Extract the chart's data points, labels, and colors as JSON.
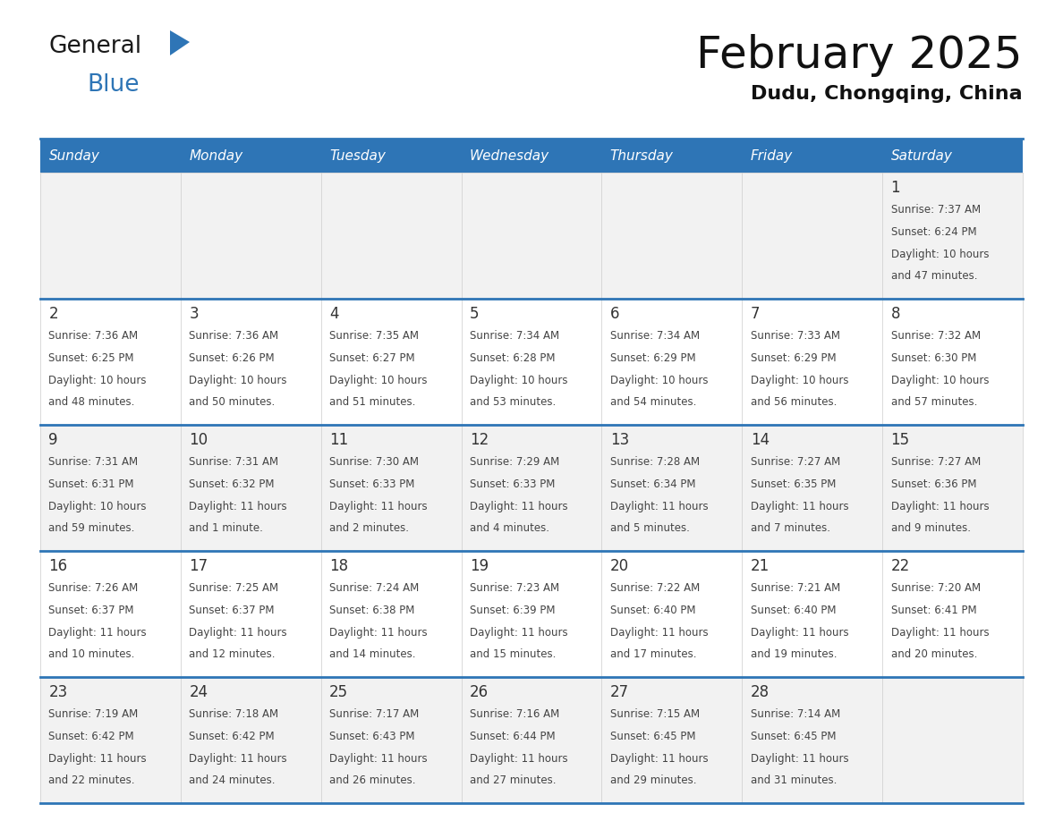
{
  "title": "February 2025",
  "subtitle": "Dudu, Chongqing, China",
  "days_of_week": [
    "Sunday",
    "Monday",
    "Tuesday",
    "Wednesday",
    "Thursday",
    "Friday",
    "Saturday"
  ],
  "header_bg": "#2E75B6",
  "header_text": "#FFFFFF",
  "divider_color": "#2E75B6",
  "day_number_color": "#333333",
  "info_text_color": "#444444",
  "title_color": "#111111",
  "subtitle_color": "#111111",
  "row0_bg": "#F2F2F2",
  "row1_bg": "#FFFFFF",
  "calendar_data": [
    {
      "day": 1,
      "col": 6,
      "row": 0,
      "sunrise": "7:37 AM",
      "sunset": "6:24 PM",
      "daylight_hours": 10,
      "daylight_minutes": 47,
      "minute_word": "minutes"
    },
    {
      "day": 2,
      "col": 0,
      "row": 1,
      "sunrise": "7:36 AM",
      "sunset": "6:25 PM",
      "daylight_hours": 10,
      "daylight_minutes": 48,
      "minute_word": "minutes"
    },
    {
      "day": 3,
      "col": 1,
      "row": 1,
      "sunrise": "7:36 AM",
      "sunset": "6:26 PM",
      "daylight_hours": 10,
      "daylight_minutes": 50,
      "minute_word": "minutes"
    },
    {
      "day": 4,
      "col": 2,
      "row": 1,
      "sunrise": "7:35 AM",
      "sunset": "6:27 PM",
      "daylight_hours": 10,
      "daylight_minutes": 51,
      "minute_word": "minutes"
    },
    {
      "day": 5,
      "col": 3,
      "row": 1,
      "sunrise": "7:34 AM",
      "sunset": "6:28 PM",
      "daylight_hours": 10,
      "daylight_minutes": 53,
      "minute_word": "minutes"
    },
    {
      "day": 6,
      "col": 4,
      "row": 1,
      "sunrise": "7:34 AM",
      "sunset": "6:29 PM",
      "daylight_hours": 10,
      "daylight_minutes": 54,
      "minute_word": "minutes"
    },
    {
      "day": 7,
      "col": 5,
      "row": 1,
      "sunrise": "7:33 AM",
      "sunset": "6:29 PM",
      "daylight_hours": 10,
      "daylight_minutes": 56,
      "minute_word": "minutes"
    },
    {
      "day": 8,
      "col": 6,
      "row": 1,
      "sunrise": "7:32 AM",
      "sunset": "6:30 PM",
      "daylight_hours": 10,
      "daylight_minutes": 57,
      "minute_word": "minutes"
    },
    {
      "day": 9,
      "col": 0,
      "row": 2,
      "sunrise": "7:31 AM",
      "sunset": "6:31 PM",
      "daylight_hours": 10,
      "daylight_minutes": 59,
      "minute_word": "minutes"
    },
    {
      "day": 10,
      "col": 1,
      "row": 2,
      "sunrise": "7:31 AM",
      "sunset": "6:32 PM",
      "daylight_hours": 11,
      "daylight_minutes": 1,
      "minute_word": "minute"
    },
    {
      "day": 11,
      "col": 2,
      "row": 2,
      "sunrise": "7:30 AM",
      "sunset": "6:33 PM",
      "daylight_hours": 11,
      "daylight_minutes": 2,
      "minute_word": "minutes"
    },
    {
      "day": 12,
      "col": 3,
      "row": 2,
      "sunrise": "7:29 AM",
      "sunset": "6:33 PM",
      "daylight_hours": 11,
      "daylight_minutes": 4,
      "minute_word": "minutes"
    },
    {
      "day": 13,
      "col": 4,
      "row": 2,
      "sunrise": "7:28 AM",
      "sunset": "6:34 PM",
      "daylight_hours": 11,
      "daylight_minutes": 5,
      "minute_word": "minutes"
    },
    {
      "day": 14,
      "col": 5,
      "row": 2,
      "sunrise": "7:27 AM",
      "sunset": "6:35 PM",
      "daylight_hours": 11,
      "daylight_minutes": 7,
      "minute_word": "minutes"
    },
    {
      "day": 15,
      "col": 6,
      "row": 2,
      "sunrise": "7:27 AM",
      "sunset": "6:36 PM",
      "daylight_hours": 11,
      "daylight_minutes": 9,
      "minute_word": "minutes"
    },
    {
      "day": 16,
      "col": 0,
      "row": 3,
      "sunrise": "7:26 AM",
      "sunset": "6:37 PM",
      "daylight_hours": 11,
      "daylight_minutes": 10,
      "minute_word": "minutes"
    },
    {
      "day": 17,
      "col": 1,
      "row": 3,
      "sunrise": "7:25 AM",
      "sunset": "6:37 PM",
      "daylight_hours": 11,
      "daylight_minutes": 12,
      "minute_word": "minutes"
    },
    {
      "day": 18,
      "col": 2,
      "row": 3,
      "sunrise": "7:24 AM",
      "sunset": "6:38 PM",
      "daylight_hours": 11,
      "daylight_minutes": 14,
      "minute_word": "minutes"
    },
    {
      "day": 19,
      "col": 3,
      "row": 3,
      "sunrise": "7:23 AM",
      "sunset": "6:39 PM",
      "daylight_hours": 11,
      "daylight_minutes": 15,
      "minute_word": "minutes"
    },
    {
      "day": 20,
      "col": 4,
      "row": 3,
      "sunrise": "7:22 AM",
      "sunset": "6:40 PM",
      "daylight_hours": 11,
      "daylight_minutes": 17,
      "minute_word": "minutes"
    },
    {
      "day": 21,
      "col": 5,
      "row": 3,
      "sunrise": "7:21 AM",
      "sunset": "6:40 PM",
      "daylight_hours": 11,
      "daylight_minutes": 19,
      "minute_word": "minutes"
    },
    {
      "day": 22,
      "col": 6,
      "row": 3,
      "sunrise": "7:20 AM",
      "sunset": "6:41 PM",
      "daylight_hours": 11,
      "daylight_minutes": 20,
      "minute_word": "minutes"
    },
    {
      "day": 23,
      "col": 0,
      "row": 4,
      "sunrise": "7:19 AM",
      "sunset": "6:42 PM",
      "daylight_hours": 11,
      "daylight_minutes": 22,
      "minute_word": "minutes"
    },
    {
      "day": 24,
      "col": 1,
      "row": 4,
      "sunrise": "7:18 AM",
      "sunset": "6:42 PM",
      "daylight_hours": 11,
      "daylight_minutes": 24,
      "minute_word": "minutes"
    },
    {
      "day": 25,
      "col": 2,
      "row": 4,
      "sunrise": "7:17 AM",
      "sunset": "6:43 PM",
      "daylight_hours": 11,
      "daylight_minutes": 26,
      "minute_word": "minutes"
    },
    {
      "day": 26,
      "col": 3,
      "row": 4,
      "sunrise": "7:16 AM",
      "sunset": "6:44 PM",
      "daylight_hours": 11,
      "daylight_minutes": 27,
      "minute_word": "minutes"
    },
    {
      "day": 27,
      "col": 4,
      "row": 4,
      "sunrise": "7:15 AM",
      "sunset": "6:45 PM",
      "daylight_hours": 11,
      "daylight_minutes": 29,
      "minute_word": "minutes"
    },
    {
      "day": 28,
      "col": 5,
      "row": 4,
      "sunrise": "7:14 AM",
      "sunset": "6:45 PM",
      "daylight_hours": 11,
      "daylight_minutes": 31,
      "minute_word": "minutes"
    }
  ]
}
